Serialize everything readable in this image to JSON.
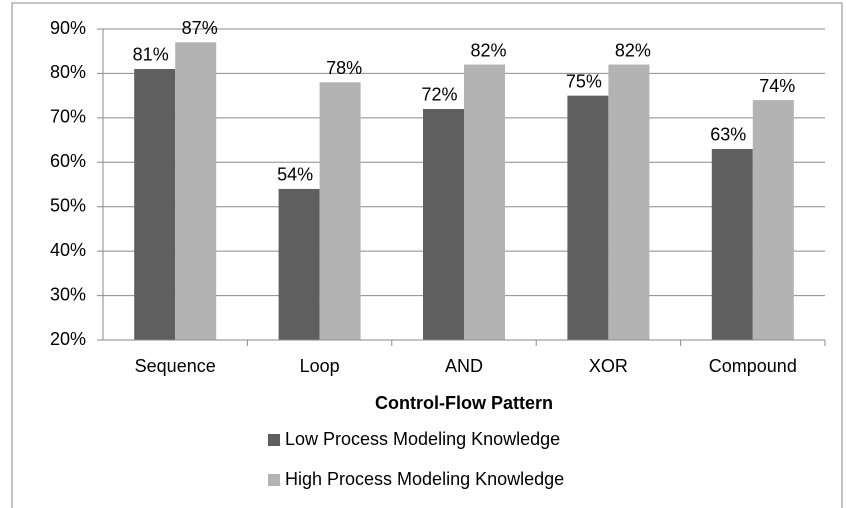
{
  "chart_data": {
    "type": "bar",
    "x_label": "Control-Flow Pattern",
    "categories": [
      "Sequence",
      "Loop",
      "AND",
      "XOR",
      "Compound"
    ],
    "series": [
      {
        "name": "Low Process Modeling Knowledge",
        "color": "#5f5f5f",
        "values": [
          81,
          54,
          72,
          75,
          63
        ],
        "value_labels": [
          "81%",
          "54%",
          "72%",
          "75%",
          "63%"
        ]
      },
      {
        "name": "High Process Modeling Knowledge",
        "color": "#b3b3b3",
        "values": [
          87,
          78,
          82,
          82,
          74
        ],
        "value_labels": [
          "87%",
          "78%",
          "82%",
          "82%",
          "74%"
        ]
      }
    ],
    "ylim": [
      20,
      90
    ],
    "yticks": [
      {
        "value": 20,
        "label": "20%"
      },
      {
        "value": 30,
        "label": "30%"
      },
      {
        "value": 40,
        "label": "40%"
      },
      {
        "value": 50,
        "label": "50%"
      },
      {
        "value": 60,
        "label": "60%"
      },
      {
        "value": 70,
        "label": "70%"
      },
      {
        "value": 80,
        "label": "80%"
      },
      {
        "value": 90,
        "label": "90%"
      }
    ],
    "grid": true
  }
}
